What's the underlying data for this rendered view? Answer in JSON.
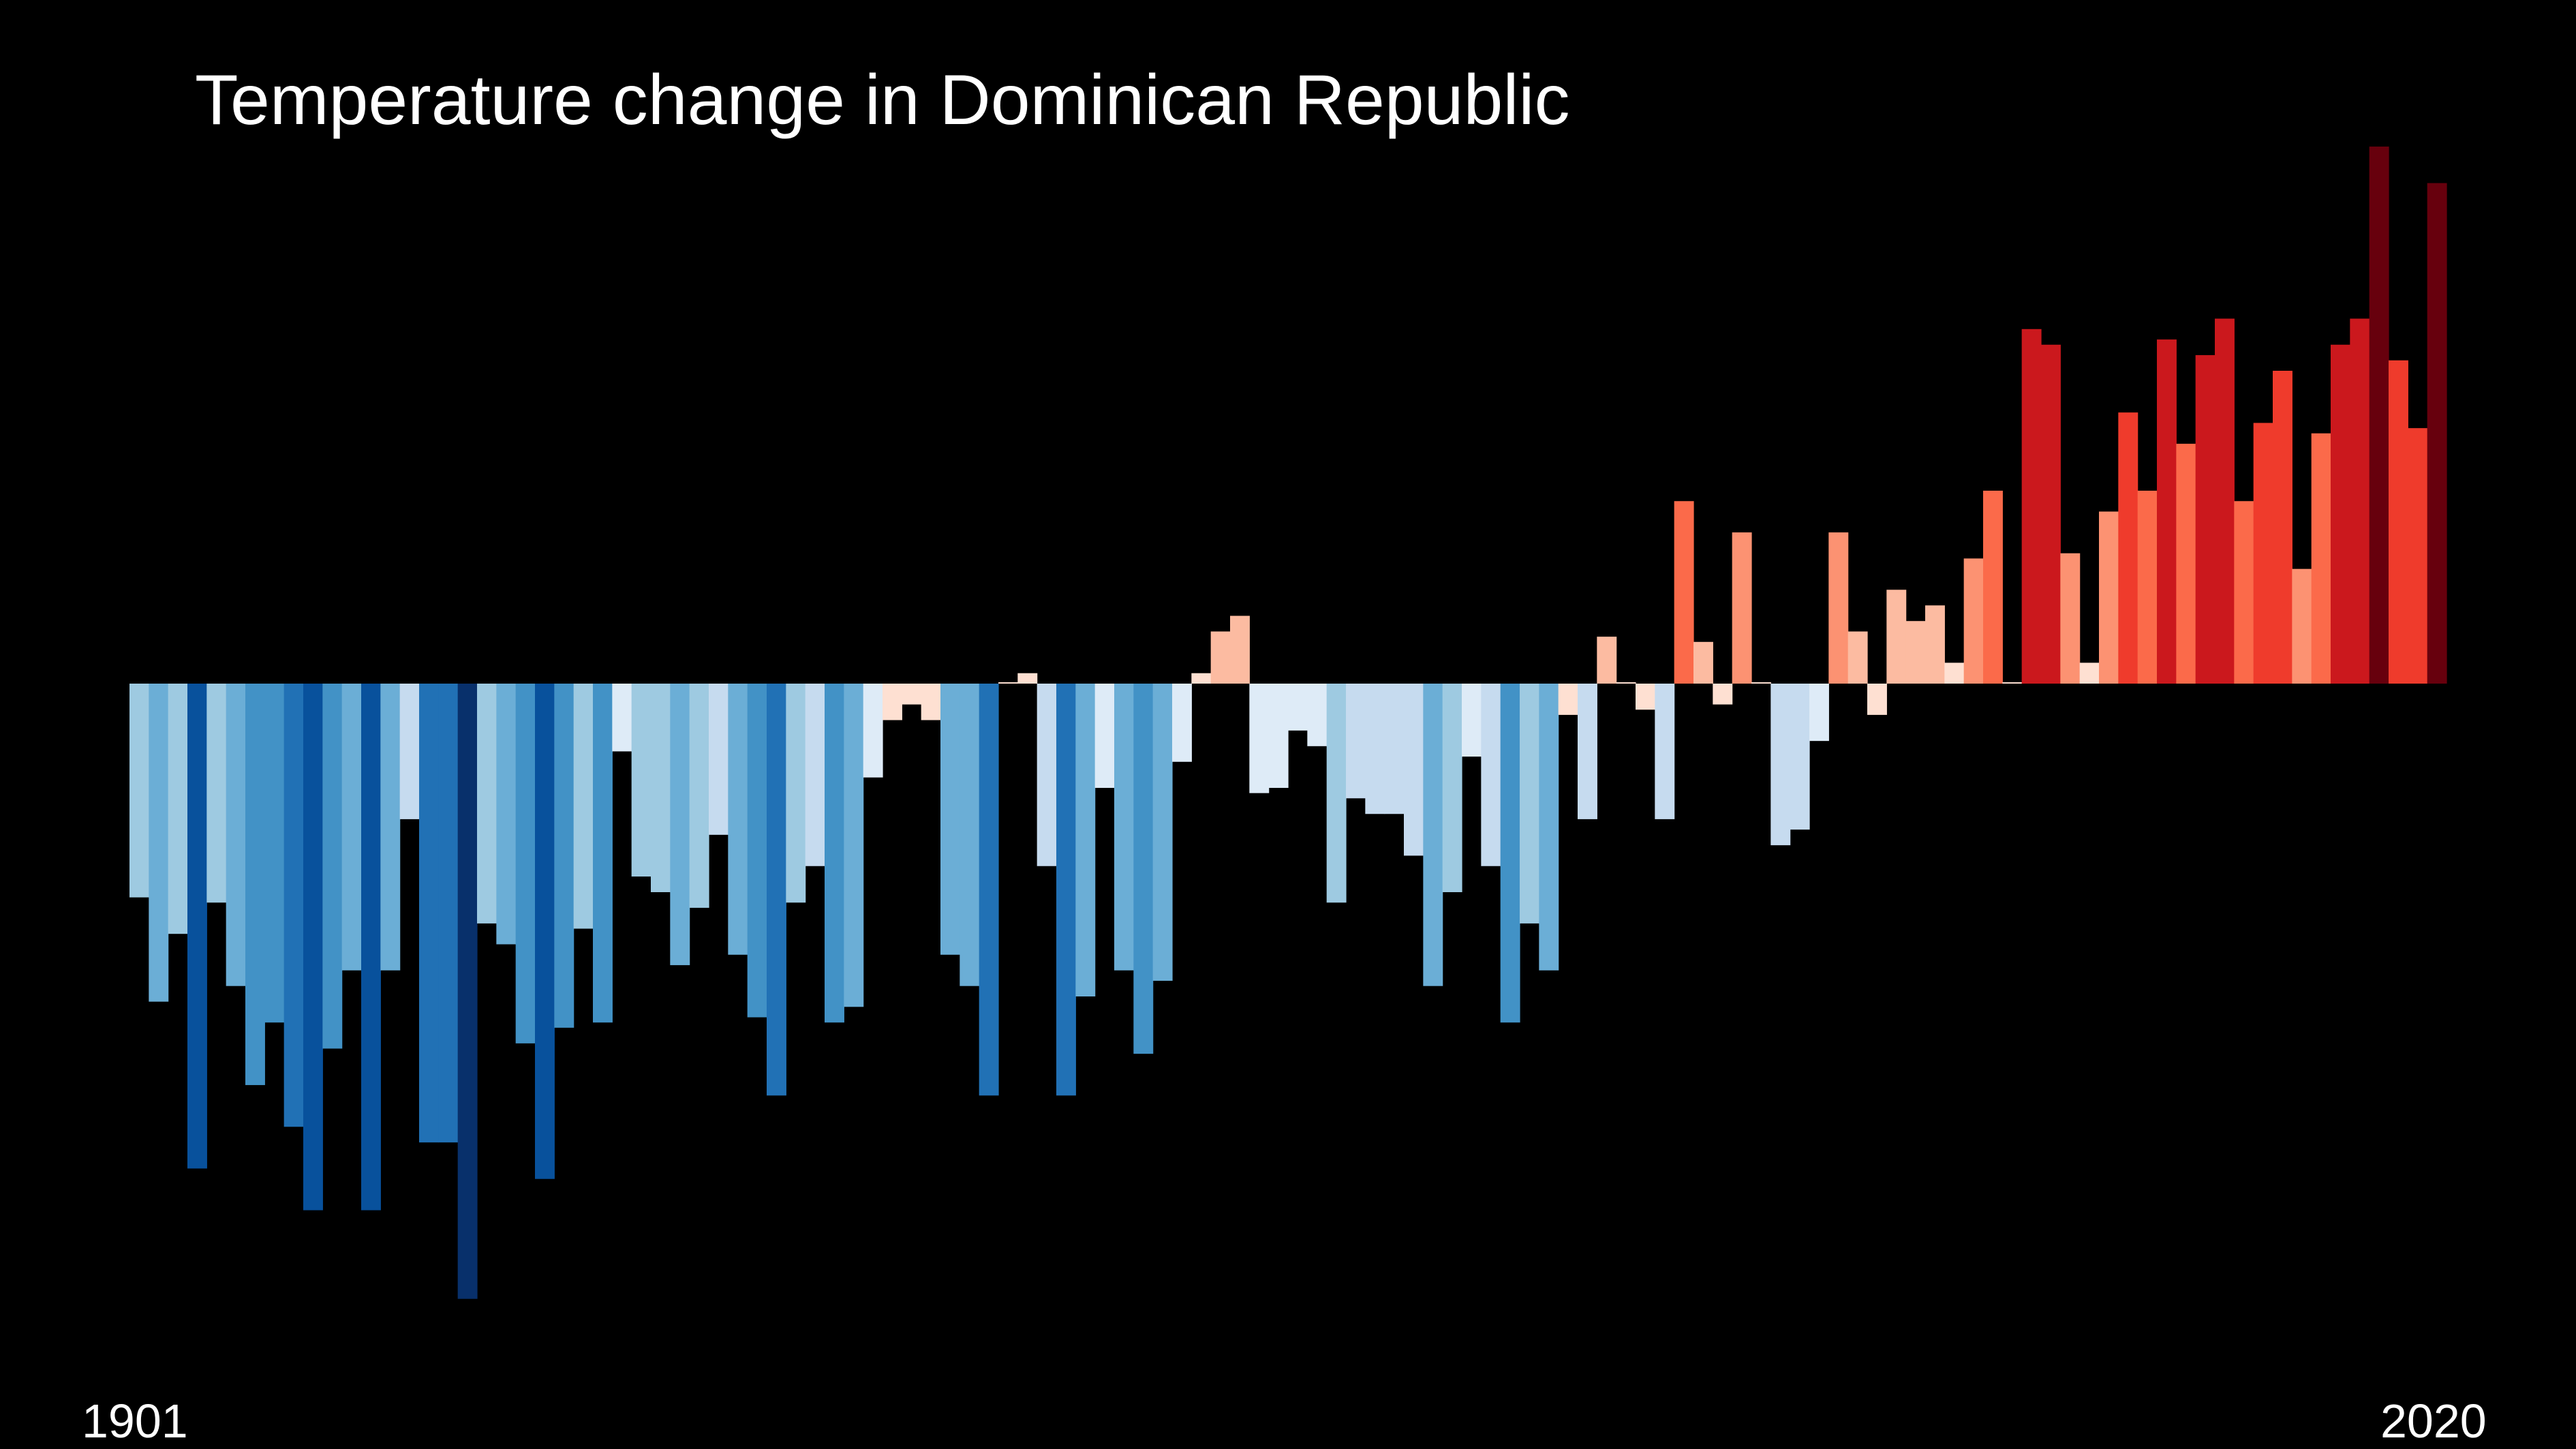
{
  "chart_data": {
    "type": "bar",
    "title": "Temperature change in Dominican Republic",
    "start_label": "1901",
    "end_label": "2020",
    "x": [
      1901,
      1902,
      1903,
      1904,
      1905,
      1906,
      1907,
      1908,
      1909,
      1910,
      1911,
      1912,
      1913,
      1914,
      1915,
      1916,
      1917,
      1918,
      1919,
      1920,
      1921,
      1922,
      1923,
      1924,
      1925,
      1926,
      1927,
      1928,
      1929,
      1930,
      1931,
      1932,
      1933,
      1934,
      1935,
      1936,
      1937,
      1938,
      1939,
      1940,
      1941,
      1942,
      1943,
      1944,
      1945,
      1946,
      1947,
      1948,
      1949,
      1950,
      1951,
      1952,
      1953,
      1954,
      1955,
      1956,
      1957,
      1958,
      1959,
      1960,
      1961,
      1962,
      1963,
      1964,
      1965,
      1966,
      1967,
      1968,
      1969,
      1970,
      1971,
      1972,
      1973,
      1974,
      1975,
      1976,
      1977,
      1978,
      1979,
      1980,
      1981,
      1982,
      1983,
      1984,
      1985,
      1986,
      1987,
      1988,
      1989,
      1990,
      1991,
      1992,
      1993,
      1994,
      1995,
      1996,
      1997,
      1998,
      1999,
      2000,
      2001,
      2002,
      2003,
      2004,
      2005,
      2006,
      2007,
      2008,
      2009,
      2010,
      2011,
      2012,
      2013,
      2014,
      2015,
      2016,
      2017,
      2018,
      2019,
      2020
    ],
    "values": [
      -0.41,
      -0.61,
      -0.48,
      -0.93,
      -0.42,
      -0.58,
      -0.77,
      -0.65,
      -0.85,
      -1.01,
      -0.7,
      -0.55,
      -1.01,
      -0.55,
      -0.26,
      -0.88,
      -0.88,
      -1.18,
      -0.46,
      -0.5,
      -0.69,
      -0.95,
      -0.66,
      -0.47,
      -0.65,
      -0.13,
      -0.37,
      -0.4,
      -0.54,
      -0.43,
      -0.29,
      -0.52,
      -0.64,
      -0.79,
      -0.42,
      -0.35,
      -0.65,
      -0.62,
      -0.18,
      -0.07,
      -0.04,
      -0.07,
      -0.52,
      -0.58,
      -0.79,
      0.0,
      0.02,
      -0.35,
      -0.79,
      -0.6,
      -0.2,
      -0.55,
      -0.71,
      -0.57,
      -0.15,
      0.02,
      0.1,
      0.13,
      -0.21,
      -0.2,
      -0.09,
      -0.12,
      -0.42,
      -0.22,
      -0.25,
      -0.25,
      -0.33,
      -0.58,
      -0.4,
      -0.14,
      -0.35,
      -0.65,
      -0.46,
      -0.55,
      -0.06,
      -0.26,
      0.09,
      0.0,
      -0.05,
      -0.26,
      0.35,
      0.08,
      -0.04,
      0.29,
      0.0,
      -0.31,
      -0.28,
      -0.11,
      0.29,
      0.1,
      -0.06,
      0.18,
      0.12,
      0.15,
      0.04,
      0.24,
      0.37,
      0.0,
      0.68,
      0.65,
      0.25,
      0.04,
      0.33,
      0.52,
      0.37,
      0.66,
      0.46,
      0.63,
      0.7,
      0.35,
      0.5,
      0.6,
      0.22,
      0.48,
      0.65,
      0.7,
      1.03,
      0.62,
      0.49,
      0.96
    ],
    "ylim": [
      -1.25,
      1.1
    ],
    "colors": {
      "background": "#000000",
      "text": "#ffffff",
      "scale": [
        "#08306b",
        "#08519c",
        "#2171b5",
        "#4292c6",
        "#6baed6",
        "#9ecae1",
        "#c6dbef",
        "#deebf7",
        "#fee0d2",
        "#fcbba1",
        "#fc9272",
        "#fb6a4a",
        "#ef3b2c",
        "#cb181d",
        "#a50f15",
        "#67000d"
      ]
    }
  }
}
